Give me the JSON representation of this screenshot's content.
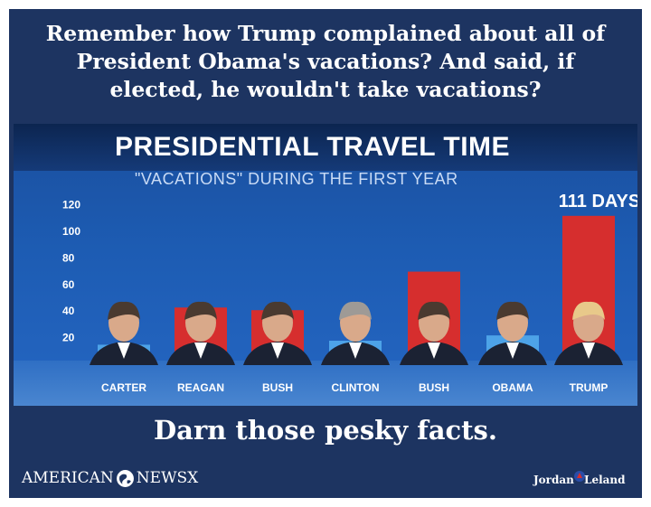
{
  "headline": {
    "line1": "Remember how Trump complained about all of",
    "line2": "President Obama's vacations? And said, if",
    "line3": "elected, he wouldn't take vacations?"
  },
  "chart_data": {
    "type": "bar",
    "title": "PRESIDENTIAL TRAVEL TIME",
    "subtitle": "\"VACATIONS\" DURING THE FIRST YEAR",
    "categories": [
      "CARTER",
      "REAGAN",
      "BUSH",
      "CLINTON",
      "BUSH",
      "OBAMA",
      "TRUMP"
    ],
    "values": [
      14,
      42,
      40,
      17,
      69,
      21,
      111
    ],
    "bar_colors": [
      "#4da3e8",
      "#d62e2e",
      "#d62e2e",
      "#4da3e8",
      "#d62e2e",
      "#4da3e8",
      "#d62e2e"
    ],
    "y_ticks": [
      "120",
      "100",
      "80",
      "60",
      "40",
      "20"
    ],
    "ylim": [
      0,
      120
    ],
    "annotation": "111 DAYS",
    "grid": false
  },
  "tagline": "Darn those pesky facts.",
  "brand": {
    "part1": "AMERICAN",
    "part2": "NEWSX"
  },
  "credit": {
    "first": "Jordan",
    "second": "Leland"
  },
  "colors": {
    "background": "#1d3461",
    "red": "#d62e2e",
    "blue": "#4da3e8"
  }
}
